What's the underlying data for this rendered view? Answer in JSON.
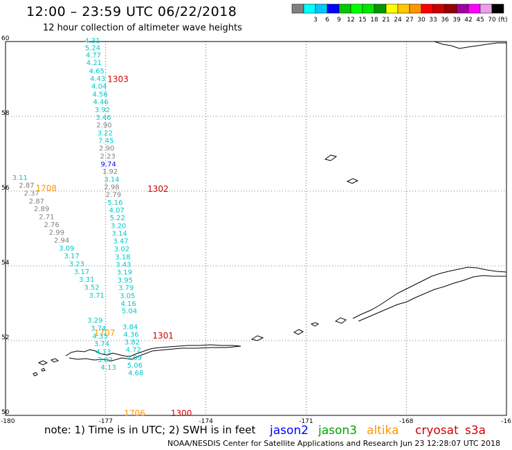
{
  "header": {
    "title": "12:00 – 23:59 UTC 06/22/2018",
    "subtitle": "12 hour collection of altimeter wave heights"
  },
  "legend": {
    "unit": "(ft)",
    "swatches": [
      {
        "color": "#808080",
        "label": ""
      },
      {
        "color": "#00ffff",
        "label": "3"
      },
      {
        "color": "#00c8ff",
        "label": "6"
      },
      {
        "color": "#0000ff",
        "label": "9"
      },
      {
        "color": "#00c800",
        "label": "12"
      },
      {
        "color": "#00ff00",
        "label": "15"
      },
      {
        "color": "#00e600",
        "label": "18"
      },
      {
        "color": "#009600",
        "label": "21"
      },
      {
        "color": "#ffff00",
        "label": "24"
      },
      {
        "color": "#ffc800",
        "label": "27"
      },
      {
        "color": "#ff9600",
        "label": "30"
      },
      {
        "color": "#ff0000",
        "label": "33"
      },
      {
        "color": "#c80000",
        "label": "36"
      },
      {
        "color": "#960000",
        "label": "39"
      },
      {
        "color": "#a000a0",
        "label": "42"
      },
      {
        "color": "#ff00ff",
        "label": "45"
      },
      {
        "color": "#e8a0e8",
        "label": "70"
      },
      {
        "color": "#000000",
        "label": ""
      }
    ]
  },
  "axes": {
    "lat_labels": [
      "60",
      "58",
      "56",
      "54",
      "52",
      "50"
    ],
    "lon_labels": [
      "-180",
      "-177",
      "-174",
      "-171",
      "-168",
      "-16"
    ]
  },
  "pass_times": [
    {
      "text": "1303",
      "lon": -176.95,
      "lat": 58.92,
      "color": "#d00000"
    },
    {
      "text": "1302",
      "lon": -175.75,
      "lat": 55.98,
      "color": "#d00000"
    },
    {
      "text": "1708",
      "lon": -179.1,
      "lat": 56.0,
      "color": "#ff9600"
    },
    {
      "text": "1707",
      "lon": -177.35,
      "lat": 52.13,
      "color": "#ff9600"
    },
    {
      "text": "1301",
      "lon": -175.6,
      "lat": 52.06,
      "color": "#d00000"
    },
    {
      "text": "1706",
      "lon": -176.45,
      "lat": 49.98,
      "color": "#ff9600"
    },
    {
      "text": "1300",
      "lon": -175.05,
      "lat": 49.98,
      "color": "#d00000"
    }
  ],
  "wave_heights": [
    {
      "text": "4.31",
      "lon": -177.63,
      "lat": 59.96,
      "color": "#00c8c8"
    },
    {
      "text": "5.24",
      "lon": -177.62,
      "lat": 59.77,
      "color": "#00c8c8"
    },
    {
      "text": "4.77",
      "lon": -177.6,
      "lat": 59.57,
      "color": "#00c8c8"
    },
    {
      "text": "4.21",
      "lon": -177.58,
      "lat": 59.37,
      "color": "#00c8c8"
    },
    {
      "text": "4.65",
      "lon": -177.5,
      "lat": 59.15,
      "color": "#00c8c8"
    },
    {
      "text": "4.43",
      "lon": -177.47,
      "lat": 58.94,
      "color": "#00c8c8"
    },
    {
      "text": "4.04",
      "lon": -177.43,
      "lat": 58.74,
      "color": "#00c8c8"
    },
    {
      "text": "4.56",
      "lon": -177.4,
      "lat": 58.53,
      "color": "#00c8c8"
    },
    {
      "text": "4.46",
      "lon": -177.38,
      "lat": 58.32,
      "color": "#00c8c8"
    },
    {
      "text": "3.92",
      "lon": -177.33,
      "lat": 58.11,
      "color": "#00c8c8"
    },
    {
      "text": "3.46",
      "lon": -177.3,
      "lat": 57.91,
      "color": "#00c8c8"
    },
    {
      "text": "2.90",
      "lon": -177.28,
      "lat": 57.7,
      "color": "#808080"
    },
    {
      "text": "3.22",
      "lon": -177.25,
      "lat": 57.49,
      "color": "#00c8c8"
    },
    {
      "text": "7.45",
      "lon": -177.22,
      "lat": 57.29,
      "color": "#00c8c8"
    },
    {
      "text": "2.90",
      "lon": -177.2,
      "lat": 57.08,
      "color": "#808080"
    },
    {
      "text": "2.23",
      "lon": -177.17,
      "lat": 56.87,
      "color": "#808080"
    },
    {
      "text": "9.74",
      "lon": -177.15,
      "lat": 56.66,
      "color": "#0000ff"
    },
    {
      "text": "1.92",
      "lon": -177.1,
      "lat": 56.46,
      "color": "#808080"
    },
    {
      "text": "3.14",
      "lon": -177.05,
      "lat": 56.25,
      "color": "#00c8c8"
    },
    {
      "text": "2.98",
      "lon": -177.05,
      "lat": 56.05,
      "color": "#808080"
    },
    {
      "text": "2.79",
      "lon": -177.0,
      "lat": 55.84,
      "color": "#808080"
    },
    {
      "text": "5.16",
      "lon": -176.95,
      "lat": 55.63,
      "color": "#00c8c8"
    },
    {
      "text": "4.07",
      "lon": -176.9,
      "lat": 55.43,
      "color": "#00c8c8"
    },
    {
      "text": "5.22",
      "lon": -176.88,
      "lat": 55.22,
      "color": "#00c8c8"
    },
    {
      "text": "3.20",
      "lon": -176.85,
      "lat": 55.01,
      "color": "#00c8c8"
    },
    {
      "text": "3.14",
      "lon": -176.82,
      "lat": 54.81,
      "color": "#00c8c8"
    },
    {
      "text": "3.47",
      "lon": -176.78,
      "lat": 54.6,
      "color": "#00c8c8"
    },
    {
      "text": "3.02",
      "lon": -176.75,
      "lat": 54.39,
      "color": "#00c8c8"
    },
    {
      "text": "3.18",
      "lon": -176.72,
      "lat": 54.18,
      "color": "#00c8c8"
    },
    {
      "text": "3.43",
      "lon": -176.7,
      "lat": 53.97,
      "color": "#00c8c8"
    },
    {
      "text": "3.19",
      "lon": -176.67,
      "lat": 53.77,
      "color": "#00c8c8"
    },
    {
      "text": "3.95",
      "lon": -176.65,
      "lat": 53.56,
      "color": "#00c8c8"
    },
    {
      "text": "3.79",
      "lon": -176.62,
      "lat": 53.35,
      "color": "#00c8c8"
    },
    {
      "text": "3.05",
      "lon": -176.58,
      "lat": 53.14,
      "color": "#00c8c8"
    },
    {
      "text": "4.16",
      "lon": -176.55,
      "lat": 52.93,
      "color": "#00c8c8"
    },
    {
      "text": "5.04",
      "lon": -176.52,
      "lat": 52.73,
      "color": "#00c8c8"
    },
    {
      "text": "3.84",
      "lon": -176.5,
      "lat": 52.31,
      "color": "#00c8c8"
    },
    {
      "text": "4.36",
      "lon": -176.47,
      "lat": 52.1,
      "color": "#00c8c8"
    },
    {
      "text": "3.82",
      "lon": -176.44,
      "lat": 51.9,
      "color": "#00c8c8"
    },
    {
      "text": "4.72",
      "lon": -176.4,
      "lat": 51.69,
      "color": "#00c8c8"
    },
    {
      "text": "4.09",
      "lon": -176.38,
      "lat": 51.48,
      "color": "#00c8c8"
    },
    {
      "text": "5.06",
      "lon": -176.36,
      "lat": 51.28,
      "color": "#00c8c8"
    },
    {
      "text": "4.68",
      "lon": -176.33,
      "lat": 51.07,
      "color": "#00c8c8"
    },
    {
      "text": "3.11",
      "lon": -179.8,
      "lat": 56.3,
      "color": "#00c8c8"
    },
    {
      "text": "2.87",
      "lon": -179.6,
      "lat": 56.09,
      "color": "#808080"
    },
    {
      "text": "2.37",
      "lon": -179.45,
      "lat": 55.88,
      "color": "#808080"
    },
    {
      "text": "2.87",
      "lon": -179.3,
      "lat": 55.67,
      "color": "#808080"
    },
    {
      "text": "2.89",
      "lon": -179.15,
      "lat": 55.46,
      "color": "#808080"
    },
    {
      "text": "2.71",
      "lon": -179.0,
      "lat": 55.25,
      "color": "#808080"
    },
    {
      "text": "2.76",
      "lon": -178.85,
      "lat": 55.04,
      "color": "#808080"
    },
    {
      "text": "2.99",
      "lon": -178.7,
      "lat": 54.83,
      "color": "#808080"
    },
    {
      "text": "2.94",
      "lon": -178.55,
      "lat": 54.62,
      "color": "#808080"
    },
    {
      "text": "3.09",
      "lon": -178.4,
      "lat": 54.41,
      "color": "#00c8c8"
    },
    {
      "text": "3.17",
      "lon": -178.25,
      "lat": 54.2,
      "color": "#00c8c8"
    },
    {
      "text": "3.23",
      "lon": -178.1,
      "lat": 53.99,
      "color": "#00c8c8"
    },
    {
      "text": "3.17",
      "lon": -177.95,
      "lat": 53.78,
      "color": "#00c8c8"
    },
    {
      "text": "3.31",
      "lon": -177.8,
      "lat": 53.57,
      "color": "#00c8c8"
    },
    {
      "text": "3.52",
      "lon": -177.65,
      "lat": 53.36,
      "color": "#00c8c8"
    },
    {
      "text": "3.71",
      "lon": -177.5,
      "lat": 53.15,
      "color": "#00c8c8"
    },
    {
      "text": "3.29",
      "lon": -177.55,
      "lat": 52.48,
      "color": "#00c8c8"
    },
    {
      "text": "3.74",
      "lon": -177.45,
      "lat": 52.27,
      "color": "#00c8c8"
    },
    {
      "text": "4.35",
      "lon": -177.4,
      "lat": 52.06,
      "color": "#00c8c8"
    },
    {
      "text": "3.74",
      "lon": -177.35,
      "lat": 51.85,
      "color": "#00c8c8"
    },
    {
      "text": "4.13",
      "lon": -177.3,
      "lat": 51.64,
      "color": "#00c8c8"
    },
    {
      "text": "3.82",
      "lon": -177.25,
      "lat": 51.43,
      "color": "#00c8c8"
    },
    {
      "text": "4.13",
      "lon": -177.15,
      "lat": 51.22,
      "color": "#00c8c8"
    }
  ],
  "footer": {
    "note": "note: 1) Time is in UTC; 2) SWH is in feet",
    "credit": "NOAA/NESDIS Center for Satellite Applications and Research    Jun 23 12:28:07 UTC 2018",
    "missions": [
      {
        "text": "jason2",
        "color": "#0000ff"
      },
      {
        "text": "jason3",
        "color": "#00a000"
      },
      {
        "text": "altika",
        "color": "#ff9600"
      },
      {
        "text": "cryosat",
        "color": "#d00000"
      },
      {
        "text": "s3a",
        "color": "#d00000"
      }
    ]
  }
}
